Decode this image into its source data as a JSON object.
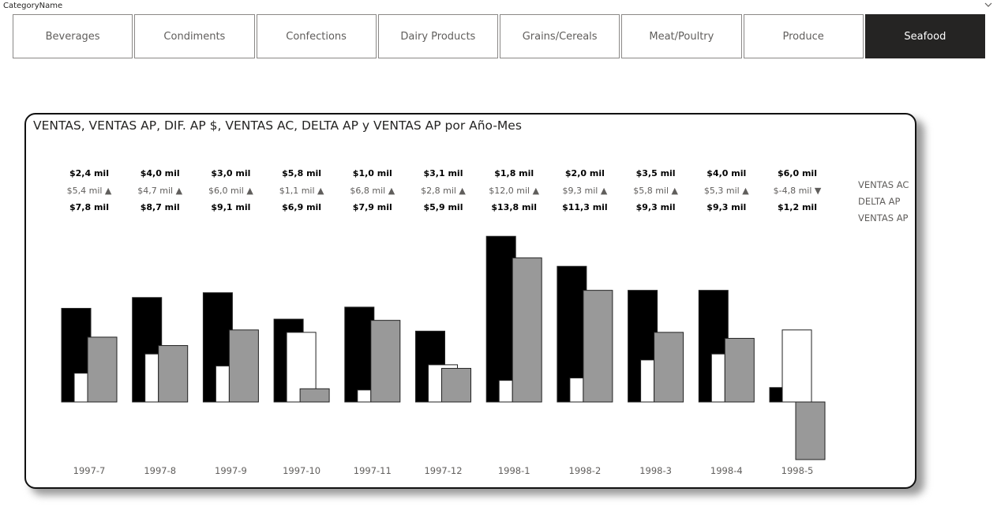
{
  "slicer": {
    "title": "CategoryName",
    "selected": "Seafood",
    "items": [
      "Beverages",
      "Condiments",
      "Confections",
      "Dairy Products",
      "Grains/Cereals",
      "Meat/Poultry",
      "Produce",
      "Seafood"
    ]
  },
  "colors": {
    "ventas_ac": "#000000",
    "dif_ap": "#ffffff",
    "ventas_ap": "#999999",
    "selected_tile": "#252423"
  },
  "icons": {
    "slicer_toggle": "chevron-down-icon"
  },
  "chart_data": {
    "type": "bar",
    "title": "VENTAS, VENTAS AP, DIF. AP $, VENTAS AC, DELTA AP y VENTAS AP por Año-Mes",
    "categories": [
      "1997-7",
      "1997-8",
      "1997-9",
      "1997-10",
      "1997-11",
      "1997-12",
      "1998-1",
      "1998-2",
      "1998-3",
      "1998-4",
      "1998-5"
    ],
    "series": [
      {
        "key": "ventas",
        "values": [
          7.8,
          8.7,
          9.1,
          6.9,
          7.9,
          5.9,
          13.8,
          11.3,
          9.3,
          9.3,
          1.2
        ]
      },
      {
        "key": "dif_ap",
        "values": [
          2.4,
          4.0,
          3.0,
          5.8,
          1.0,
          3.1,
          1.8,
          2.0,
          3.5,
          4.0,
          6.0
        ]
      },
      {
        "key": "ventas_ap",
        "values": [
          5.4,
          4.7,
          6.0,
          1.1,
          6.8,
          2.8,
          12.0,
          9.3,
          5.8,
          5.3,
          -4.8
        ]
      }
    ],
    "labels": {
      "row1": [
        "$2,4 mil",
        "$4,0 mil",
        "$3,0 mil",
        "$5,8 mil",
        "$1,0 mil",
        "$3,1 mil",
        "$1,8 mil",
        "$2,0 mil",
        "$3,5 mil",
        "$4,0 mil",
        "$6,0 mil"
      ],
      "row2": [
        "$5,4 mil ▲",
        "$4,7 mil ▲",
        "$6,0 mil ▲",
        "$1,1 mil ▲",
        "$6,8 mil ▲",
        "$2,8 mil ▲",
        "$12,0 mil ▲",
        "$9,3 mil ▲",
        "$5,8 mil ▲",
        "$5,3 mil ▲",
        "$-4,8 mil ▼"
      ],
      "row3": [
        "$7,8 mil",
        "$8,7 mil",
        "$9,1 mil",
        "$6,9 mil",
        "$7,9 mil",
        "$5,9 mil",
        "$13,8 mil",
        "$11,3 mil",
        "$9,3 mil",
        "$9,3 mil",
        "$1,2 mil"
      ]
    },
    "legend": [
      "VENTAS AC",
      "DELTA AP",
      "VENTAS AP"
    ],
    "legend_position": "right",
    "grid": false
  }
}
